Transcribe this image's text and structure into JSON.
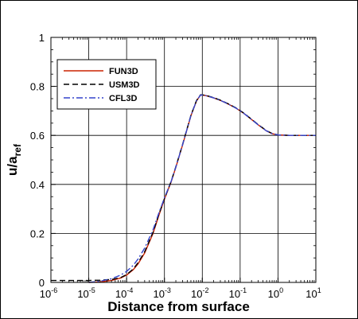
{
  "chart_data": {
    "type": "line",
    "xlabel": "Distance from surface",
    "ylabel_main": "u/a",
    "ylabel_sub": "ref",
    "x_scale": "log",
    "xlim": [
      1e-06,
      10
    ],
    "ylim": [
      0,
      1
    ],
    "grid": true,
    "legend_position": "top-left",
    "x_ticks": [
      {
        "value": 1e-06,
        "base": "10",
        "exp": "-6"
      },
      {
        "value": 1e-05,
        "base": "10",
        "exp": "-5"
      },
      {
        "value": 0.0001,
        "base": "10",
        "exp": "-4"
      },
      {
        "value": 0.001,
        "base": "10",
        "exp": "-3"
      },
      {
        "value": 0.01,
        "base": "10",
        "exp": "-2"
      },
      {
        "value": 0.1,
        "base": "10",
        "exp": "-1"
      },
      {
        "value": 1,
        "base": "10",
        "exp": "0"
      },
      {
        "value": 10,
        "base": "10",
        "exp": "1"
      }
    ],
    "y_ticks": [
      {
        "value": 0,
        "label": "0"
      },
      {
        "value": 0.2,
        "label": "0.2"
      },
      {
        "value": 0.4,
        "label": "0.4"
      },
      {
        "value": 0.6,
        "label": "0.6"
      },
      {
        "value": 0.8,
        "label": "0.8"
      },
      {
        "value": 1,
        "label": "1"
      }
    ],
    "series": [
      {
        "name": "FUN3D",
        "color": "#cc2200",
        "dash": "solid",
        "x": [
          1e-05,
          2e-05,
          4e-05,
          7e-05,
          0.0001,
          0.00015,
          0.0002,
          0.0003,
          0.0005,
          0.0007,
          0.001,
          0.0015,
          0.002,
          0.003,
          0.005,
          0.007,
          0.009,
          0.012,
          0.02,
          0.03,
          0.05,
          0.08,
          0.12,
          0.2,
          0.3,
          0.5,
          0.7,
          1,
          2,
          5,
          10
        ],
        "y": [
          0.0,
          0.002,
          0.008,
          0.018,
          0.03,
          0.052,
          0.075,
          0.12,
          0.2,
          0.27,
          0.34,
          0.41,
          0.47,
          0.56,
          0.68,
          0.74,
          0.765,
          0.763,
          0.753,
          0.743,
          0.727,
          0.71,
          0.692,
          0.665,
          0.643,
          0.618,
          0.607,
          0.602,
          0.6,
          0.6,
          0.6
        ]
      },
      {
        "name": "USM3D",
        "color": "#000000",
        "dash": "dashed",
        "x": [
          1e-06,
          2e-06,
          5e-06,
          1e-05,
          2e-05,
          4e-05,
          7e-05,
          0.0001,
          0.00015,
          0.0002,
          0.0003,
          0.0005,
          0.0007,
          0.001,
          0.0015,
          0.002,
          0.003,
          0.005,
          0.007,
          0.009,
          0.012,
          0.02,
          0.03,
          0.05,
          0.08,
          0.12,
          0.2,
          0.3,
          0.5,
          0.7,
          1,
          2,
          5,
          10
        ],
        "y": [
          0.008,
          0.008,
          0.008,
          0.008,
          0.009,
          0.012,
          0.02,
          0.032,
          0.055,
          0.08,
          0.125,
          0.205,
          0.275,
          0.342,
          0.412,
          0.472,
          0.562,
          0.682,
          0.742,
          0.766,
          0.764,
          0.754,
          0.744,
          0.728,
          0.711,
          0.693,
          0.666,
          0.644,
          0.619,
          0.608,
          0.602,
          0.6,
          0.6,
          0.6
        ]
      },
      {
        "name": "CFL3D",
        "color": "#3344cc",
        "dash": "dashdot",
        "x": [
          1e-05,
          2e-05,
          4e-05,
          7e-05,
          0.0001,
          0.00015,
          0.0002,
          0.0003,
          0.0005,
          0.0007,
          0.001,
          0.0015,
          0.002,
          0.003,
          0.005,
          0.007,
          0.009,
          0.012,
          0.02,
          0.03,
          0.05,
          0.08,
          0.12,
          0.2,
          0.3,
          0.5,
          0.7,
          1,
          2,
          5,
          10
        ],
        "y": [
          0.0,
          0.005,
          0.015,
          0.03,
          0.045,
          0.07,
          0.095,
          0.14,
          0.215,
          0.28,
          0.345,
          0.412,
          0.471,
          0.561,
          0.681,
          0.741,
          0.765,
          0.763,
          0.753,
          0.743,
          0.727,
          0.71,
          0.692,
          0.665,
          0.643,
          0.618,
          0.607,
          0.602,
          0.6,
          0.6,
          0.6
        ]
      }
    ]
  }
}
